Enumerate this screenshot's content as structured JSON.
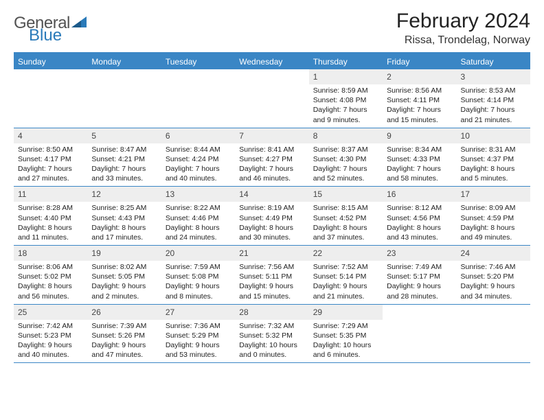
{
  "brand": {
    "text1": "General",
    "text2": "Blue"
  },
  "header": {
    "month_title": "February 2024",
    "location": "Rissa, Trondelag, Norway"
  },
  "colors": {
    "accent": "#3a86c5",
    "header_bg": "#3a86c5",
    "daynum_bg": "#eeeeee",
    "text": "#333333",
    "logo_gray": "#525252",
    "logo_blue": "#2a7ab9"
  },
  "weekdays": [
    "Sunday",
    "Monday",
    "Tuesday",
    "Wednesday",
    "Thursday",
    "Friday",
    "Saturday"
  ],
  "layout": {
    "leading_blanks": 4,
    "days_in_month": 29
  },
  "days": {
    "1": {
      "sunrise": "8:59 AM",
      "sunset": "4:08 PM",
      "daylight": "7 hours and 9 minutes."
    },
    "2": {
      "sunrise": "8:56 AM",
      "sunset": "4:11 PM",
      "daylight": "7 hours and 15 minutes."
    },
    "3": {
      "sunrise": "8:53 AM",
      "sunset": "4:14 PM",
      "daylight": "7 hours and 21 minutes."
    },
    "4": {
      "sunrise": "8:50 AM",
      "sunset": "4:17 PM",
      "daylight": "7 hours and 27 minutes."
    },
    "5": {
      "sunrise": "8:47 AM",
      "sunset": "4:21 PM",
      "daylight": "7 hours and 33 minutes."
    },
    "6": {
      "sunrise": "8:44 AM",
      "sunset": "4:24 PM",
      "daylight": "7 hours and 40 minutes."
    },
    "7": {
      "sunrise": "8:41 AM",
      "sunset": "4:27 PM",
      "daylight": "7 hours and 46 minutes."
    },
    "8": {
      "sunrise": "8:37 AM",
      "sunset": "4:30 PM",
      "daylight": "7 hours and 52 minutes."
    },
    "9": {
      "sunrise": "8:34 AM",
      "sunset": "4:33 PM",
      "daylight": "7 hours and 58 minutes."
    },
    "10": {
      "sunrise": "8:31 AM",
      "sunset": "4:37 PM",
      "daylight": "8 hours and 5 minutes."
    },
    "11": {
      "sunrise": "8:28 AM",
      "sunset": "4:40 PM",
      "daylight": "8 hours and 11 minutes."
    },
    "12": {
      "sunrise": "8:25 AM",
      "sunset": "4:43 PM",
      "daylight": "8 hours and 17 minutes."
    },
    "13": {
      "sunrise": "8:22 AM",
      "sunset": "4:46 PM",
      "daylight": "8 hours and 24 minutes."
    },
    "14": {
      "sunrise": "8:19 AM",
      "sunset": "4:49 PM",
      "daylight": "8 hours and 30 minutes."
    },
    "15": {
      "sunrise": "8:15 AM",
      "sunset": "4:52 PM",
      "daylight": "8 hours and 37 minutes."
    },
    "16": {
      "sunrise": "8:12 AM",
      "sunset": "4:56 PM",
      "daylight": "8 hours and 43 minutes."
    },
    "17": {
      "sunrise": "8:09 AM",
      "sunset": "4:59 PM",
      "daylight": "8 hours and 49 minutes."
    },
    "18": {
      "sunrise": "8:06 AM",
      "sunset": "5:02 PM",
      "daylight": "8 hours and 56 minutes."
    },
    "19": {
      "sunrise": "8:02 AM",
      "sunset": "5:05 PM",
      "daylight": "9 hours and 2 minutes."
    },
    "20": {
      "sunrise": "7:59 AM",
      "sunset": "5:08 PM",
      "daylight": "9 hours and 8 minutes."
    },
    "21": {
      "sunrise": "7:56 AM",
      "sunset": "5:11 PM",
      "daylight": "9 hours and 15 minutes."
    },
    "22": {
      "sunrise": "7:52 AM",
      "sunset": "5:14 PM",
      "daylight": "9 hours and 21 minutes."
    },
    "23": {
      "sunrise": "7:49 AM",
      "sunset": "5:17 PM",
      "daylight": "9 hours and 28 minutes."
    },
    "24": {
      "sunrise": "7:46 AM",
      "sunset": "5:20 PM",
      "daylight": "9 hours and 34 minutes."
    },
    "25": {
      "sunrise": "7:42 AM",
      "sunset": "5:23 PM",
      "daylight": "9 hours and 40 minutes."
    },
    "26": {
      "sunrise": "7:39 AM",
      "sunset": "5:26 PM",
      "daylight": "9 hours and 47 minutes."
    },
    "27": {
      "sunrise": "7:36 AM",
      "sunset": "5:29 PM",
      "daylight": "9 hours and 53 minutes."
    },
    "28": {
      "sunrise": "7:32 AM",
      "sunset": "5:32 PM",
      "daylight": "10 hours and 0 minutes."
    },
    "29": {
      "sunrise": "7:29 AM",
      "sunset": "5:35 PM",
      "daylight": "10 hours and 6 minutes."
    }
  },
  "labels": {
    "sunrise": "Sunrise: ",
    "sunset": "Sunset: ",
    "daylight": "Daylight: "
  }
}
